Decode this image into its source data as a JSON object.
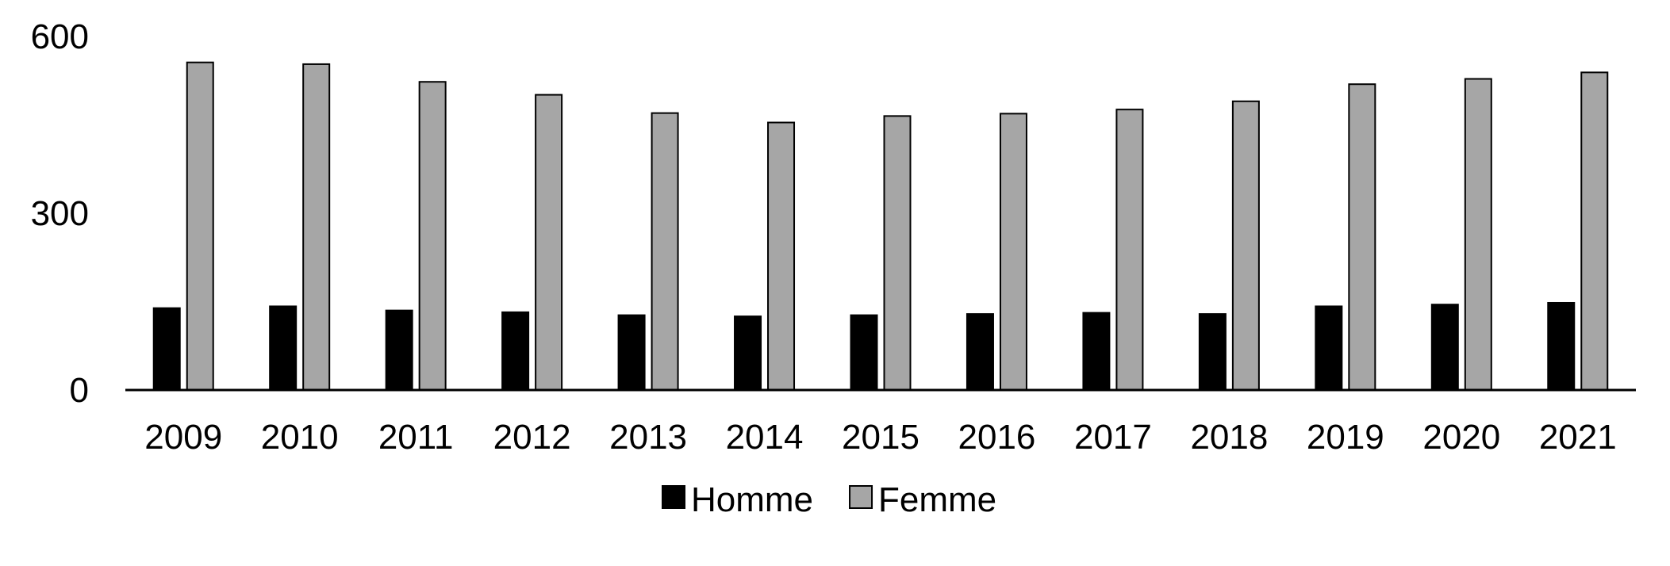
{
  "chart_data": {
    "type": "bar",
    "title": "",
    "xlabel": "",
    "ylabel": "",
    "ylim": [
      0,
      600
    ],
    "yticks": [
      "0",
      "300",
      "600"
    ],
    "grid": false,
    "legend_position": "bottom",
    "categories": [
      "2009",
      "2010",
      "2011",
      "2012",
      "2013",
      "2014",
      "2015",
      "2016",
      "2017",
      "2018",
      "2019",
      "2020",
      "2021"
    ],
    "series": [
      {
        "name": "Homme",
        "color": "#000000",
        "values": [
          139,
          142,
          135,
          132,
          127,
          125,
          127,
          129,
          131,
          129,
          142,
          145,
          148
        ]
      },
      {
        "name": "Femme",
        "color": "#a6a6a6",
        "values": [
          556,
          553,
          523,
          501,
          470,
          454,
          465,
          469,
          476,
          490,
          519,
          528,
          539
        ]
      }
    ]
  }
}
